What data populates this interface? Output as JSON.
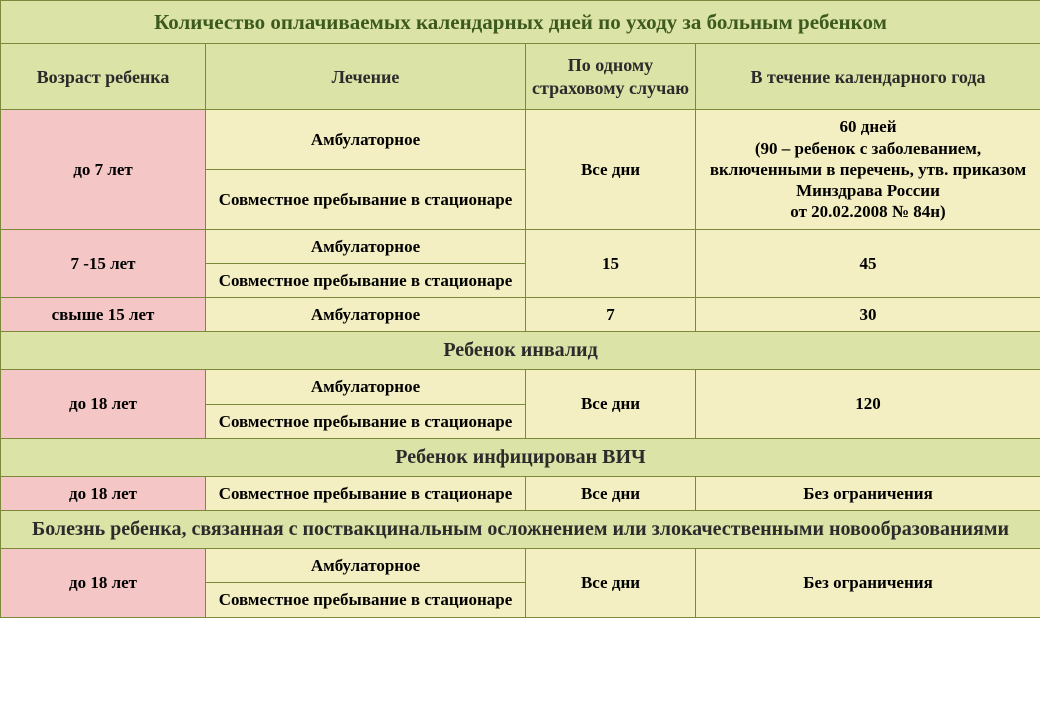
{
  "title": "Количество оплачиваемых календарных дней по уходу за больным ребенком",
  "headers": {
    "age": "Возраст ребенка",
    "treatment": "Лечение",
    "per_case": "По одному страховому случаю",
    "per_year": "В течение календарного года"
  },
  "treatments": {
    "amb": "Амбулаторное",
    "stac": "Совместное пребывание в стационаре"
  },
  "sections": {
    "disabled": "Ребенок инвалид",
    "hiv": "Ребенок инфицирован ВИЧ",
    "postvac": "Болезнь ребенка, связанная с поствакцинальным осложнением или злокачественными новообразованиями"
  },
  "rows": {
    "r1": {
      "age": "до 7 лет",
      "per_case": "Все дни",
      "per_year": "60 дней\n(90 –  ребенок с заболеванием, включенными в перечень, утв. приказом Минздрава России\nот 20.02.2008  № 84н)"
    },
    "r2": {
      "age": "7 -15 лет",
      "per_case": "15",
      "per_year": "45"
    },
    "r3": {
      "age": "свыше 15 лет",
      "per_case": "7",
      "per_year": "30"
    },
    "r4": {
      "age": "до 18 лет",
      "per_case": "Все дни",
      "per_year": "120"
    },
    "r5": {
      "age": "до 18 лет",
      "per_case": "Все дни",
      "per_year": "Без ограничения"
    },
    "r6": {
      "age": "до 18 лет",
      "per_case": "Все дни",
      "per_year": "Без ограничения"
    }
  },
  "colors": {
    "header_bg": "#dce3a7",
    "title_text": "#3d5a1e",
    "pink": "#f5c6c6",
    "cream": "#f3efc2",
    "border": "#7a8a3a"
  }
}
